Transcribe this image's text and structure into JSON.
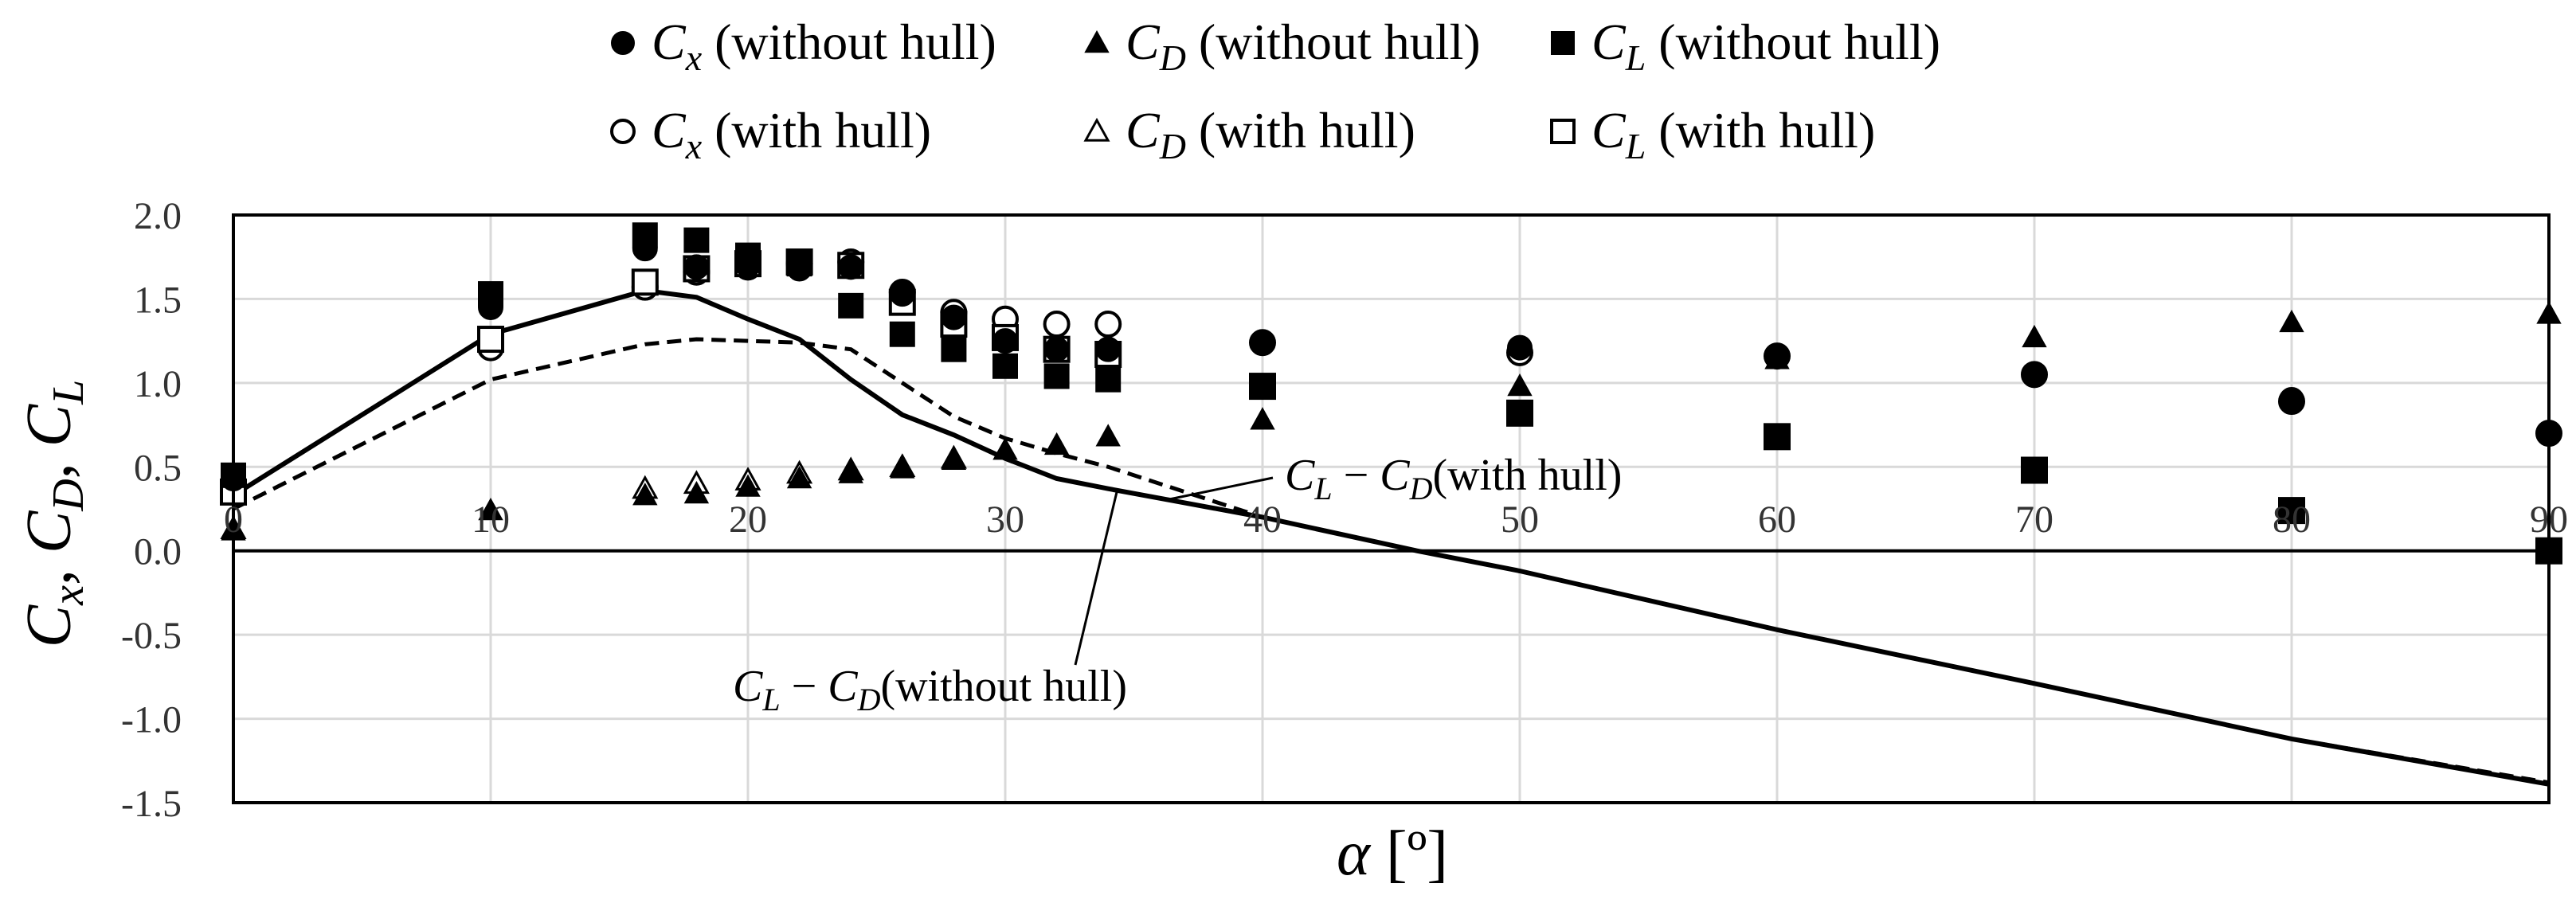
{
  "chart_data": {
    "type": "scatter",
    "xlabel_var": "α",
    "xlabel_unit": "[º]",
    "ylabel": "Cx, CD, CL",
    "xlim": [
      0,
      90
    ],
    "ylim": [
      -1.5,
      2.0
    ],
    "x_ticks": [
      "0",
      "10",
      "20",
      "30",
      "40",
      "50",
      "60",
      "70",
      "80",
      "90"
    ],
    "y_ticks": [
      "2.0",
      "1.5",
      "1.0",
      "0.5",
      "0.0",
      "-0.5",
      "-1.0",
      "-1.5"
    ],
    "grid": true,
    "legend_position": "top",
    "series": [
      {
        "name": "Cx (without hull)",
        "var": "C",
        "sub": "x",
        "suffix": "(without hull)",
        "marker": "filled-circle",
        "x": [
          0,
          10,
          16,
          18,
          20,
          22,
          24,
          26,
          28,
          30,
          32,
          34,
          40,
          50,
          60,
          70,
          80,
          90
        ],
        "y": [
          0.43,
          1.45,
          1.8,
          1.69,
          1.7,
          1.68,
          1.69,
          1.53,
          1.39,
          1.25,
          1.2,
          1.2,
          1.24,
          1.21,
          1.16,
          1.05,
          0.9,
          0.7
        ]
      },
      {
        "name": "CD (without hull)",
        "var": "C",
        "sub": "D",
        "suffix": "(without hull)",
        "marker": "filled-triangle",
        "x": [
          0,
          10,
          16,
          18,
          20,
          22,
          24,
          26,
          28,
          30,
          32,
          34,
          40,
          50,
          60,
          70,
          80,
          90
        ],
        "y": [
          0.12,
          0.24,
          0.33,
          0.34,
          0.38,
          0.43,
          0.46,
          0.49,
          0.54,
          0.6,
          0.63,
          0.68,
          0.78,
          0.98,
          1.14,
          1.27,
          1.36,
          1.41
        ]
      },
      {
        "name": "CL (without hull)",
        "var": "C",
        "sub": "L",
        "suffix": "(without hull)",
        "marker": "filled-square",
        "x": [
          0,
          10,
          16,
          18,
          20,
          22,
          24,
          26,
          28,
          30,
          32,
          34,
          40,
          50,
          60,
          70,
          80,
          90
        ],
        "y": [
          0.45,
          1.53,
          1.88,
          1.85,
          1.76,
          1.71,
          1.46,
          1.29,
          1.2,
          1.1,
          1.04,
          1.02,
          0.98,
          0.82,
          0.68,
          0.48,
          0.24,
          0.0
        ]
      },
      {
        "name": "Cx (with hull)",
        "var": "C",
        "sub": "x",
        "suffix": "(with hull)",
        "marker": "open-circle",
        "x": [
          0,
          10,
          16,
          18,
          20,
          22,
          24,
          26,
          28,
          30,
          32,
          34,
          40,
          50,
          60,
          70,
          80,
          90
        ],
        "y": [
          0.38,
          1.21,
          1.57,
          1.66,
          1.69,
          1.71,
          1.72,
          1.54,
          1.42,
          1.38,
          1.35,
          1.35,
          1.24,
          1.18,
          1.16,
          1.05,
          0.89,
          0.7
        ]
      },
      {
        "name": "CD (with hull)",
        "var": "C",
        "sub": "D",
        "suffix": "(with hull)",
        "marker": "open-triangle",
        "x": [
          0,
          16,
          18,
          20,
          22,
          24,
          26,
          28
        ],
        "y": [
          0.13,
          0.37,
          0.4,
          0.42,
          0.46,
          0.48,
          0.5,
          0.55
        ]
      },
      {
        "name": "CL (with hull)",
        "var": "C",
        "sub": "L",
        "suffix": "(with hull)",
        "marker": "open-square",
        "x": [
          0,
          10,
          16,
          18,
          20,
          22,
          24,
          26,
          28,
          30,
          32,
          34,
          40,
          50,
          60,
          70,
          80,
          90
        ],
        "y": [
          0.35,
          1.26,
          1.6,
          1.68,
          1.71,
          1.72,
          1.7,
          1.48,
          1.35,
          1.27,
          1.2,
          1.17,
          0.98,
          0.82,
          0.68,
          0.48,
          0.24,
          0.0
        ]
      }
    ],
    "lines": [
      {
        "name": "CL − CD(with hull)",
        "var": "C",
        "sub1": "L",
        "sub2": "D",
        "suffix": "(with hull)",
        "style": "dashed",
        "x": [
          0,
          10,
          16,
          18,
          20,
          22,
          24,
          26,
          28,
          30,
          32,
          34,
          40,
          46,
          50,
          60,
          70,
          80,
          90
        ],
        "y": [
          0.25,
          1.02,
          1.23,
          1.26,
          1.25,
          1.24,
          1.2,
          1.0,
          0.8,
          0.67,
          0.58,
          0.5,
          0.2,
          0.0,
          -0.12,
          -0.47,
          -0.79,
          -1.12,
          -1.38
        ]
      },
      {
        "name": "CL − CD(without hull)",
        "var": "C",
        "sub1": "L",
        "sub2": "D",
        "suffix": "(without hull)",
        "style": "solid",
        "x": [
          0,
          10,
          16,
          18,
          20,
          22,
          24,
          26,
          28,
          30,
          32,
          34,
          40,
          46,
          50,
          60,
          70,
          80,
          90
        ],
        "y": [
          0.33,
          1.29,
          1.55,
          1.51,
          1.38,
          1.26,
          1.02,
          0.81,
          0.69,
          0.55,
          0.43,
          0.37,
          0.2,
          0.0,
          -0.12,
          -0.47,
          -0.79,
          -1.12,
          -1.39
        ]
      }
    ]
  }
}
